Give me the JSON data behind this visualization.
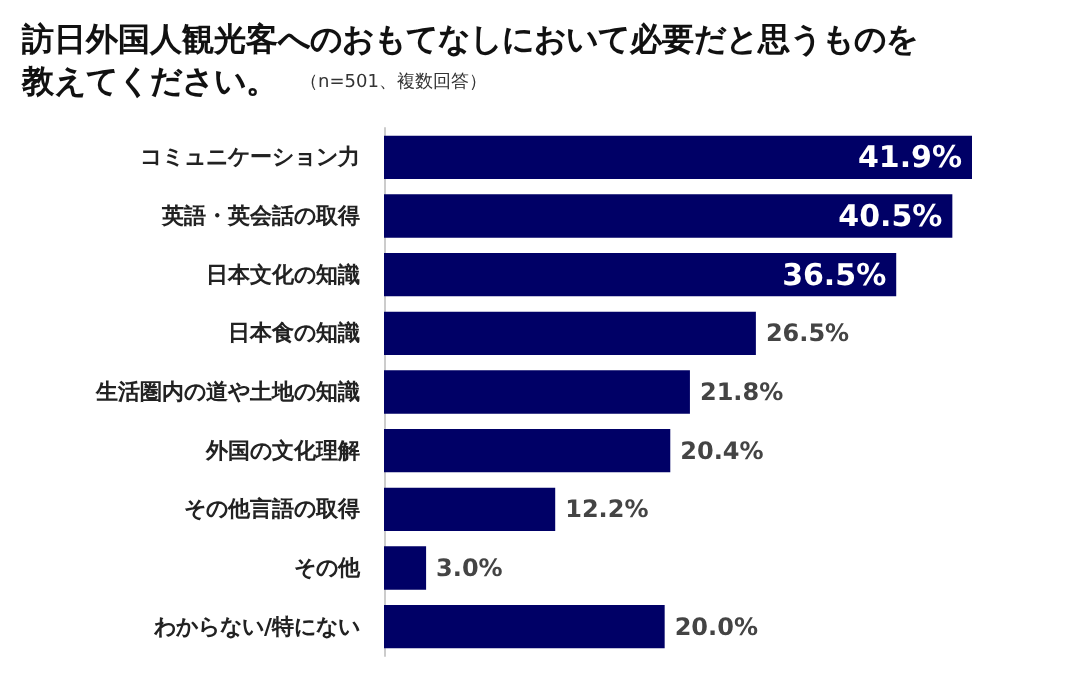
{
  "chart_data": {
    "type": "bar",
    "orientation": "horizontal",
    "title": "訪日外国人観光客へのおもてなしにおいて必要だと思うものを教えてください。",
    "subtitle": "（n=501、複数回答）",
    "categories": [
      "コミュニケーション力",
      "英語・英会話の取得",
      "日本文化の知識",
      "日本食の知識",
      "生活圏内の道や土地の知識",
      "外国の文化理解",
      "その他言語の取得",
      "その他",
      "わからない/特にない"
    ],
    "values": [
      41.9,
      40.5,
      36.5,
      26.5,
      21.8,
      20.4,
      12.2,
      3.0,
      20.0
    ],
    "value_labels": [
      "41.9%",
      "40.5%",
      "36.5%",
      "26.5%",
      "21.8%",
      "20.4%",
      "12.2%",
      "3.0%",
      "20.0%"
    ],
    "color": "#000066",
    "tick_labels": "y"
  }
}
